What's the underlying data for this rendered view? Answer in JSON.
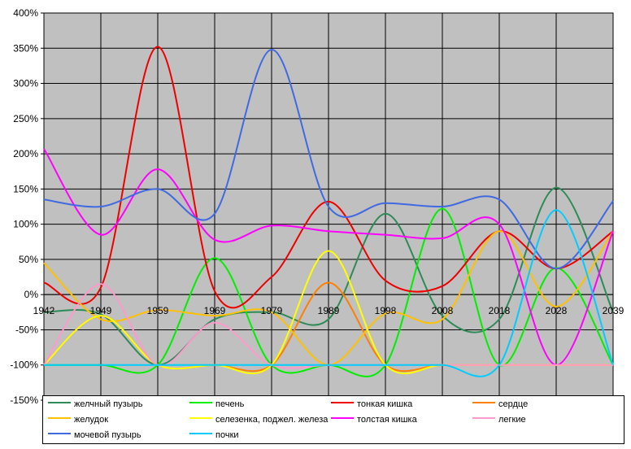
{
  "chart_data": {
    "type": "line",
    "x": [
      1942,
      1949,
      1959,
      1969,
      1979,
      1989,
      1998,
      2008,
      2018,
      2028,
      2039
    ],
    "x_tick_labels": [
      "1942",
      "1949",
      "1959",
      "1969",
      "1979",
      "1989",
      "1998",
      "2008",
      "2018",
      "2028",
      "2039"
    ],
    "ylim": [
      -150,
      400
    ],
    "y_ticks": [
      400,
      350,
      300,
      250,
      200,
      150,
      100,
      50,
      0,
      -50,
      -100,
      -150
    ],
    "y_tick_labels": [
      "400%",
      "350%",
      "300%",
      "250%",
      "200%",
      "150%",
      "100%",
      "50%",
      "0%",
      "-50%",
      "-100%",
      "-150%"
    ],
    "grid": true,
    "plot_background": "#c0c0c0",
    "legend_position": "bottom",
    "series": [
      {
        "name": "желчный пузырь",
        "color": "#2e8b57",
        "values": [
          -25,
          -28,
          -100,
          -35,
          -25,
          -35,
          115,
          -30,
          -35,
          152,
          -25
        ]
      },
      {
        "name": "печень",
        "color": "#00ee00",
        "values": [
          -100,
          -100,
          -100,
          52,
          -100,
          -100,
          -100,
          122,
          -100,
          38,
          -100
        ]
      },
      {
        "name": "тонкая кишка",
        "color": "#ee0000",
        "values": [
          17,
          10,
          352,
          5,
          25,
          132,
          20,
          12,
          90,
          37,
          90
        ]
      },
      {
        "name": "сердце",
        "color": "#ff7f00",
        "values": [
          -100,
          -30,
          -100,
          -100,
          -100,
          17,
          -100,
          -100,
          -100,
          -100,
          -100
        ]
      },
      {
        "name": "желудок",
        "color": "#ffc000",
        "values": [
          45,
          -35,
          -22,
          -30,
          -25,
          -100,
          -27,
          -35,
          90,
          -17,
          90
        ]
      },
      {
        "name": "селезенка, поджел. железа",
        "color": "#ffff00",
        "values": [
          -100,
          -30,
          -100,
          -100,
          -100,
          62,
          -100,
          -100,
          -100,
          -100,
          -100
        ]
      },
      {
        "name": "толстая кишка",
        "color": "#ff00ff",
        "values": [
          207,
          85,
          178,
          78,
          98,
          90,
          85,
          80,
          100,
          -100,
          90
        ]
      },
      {
        "name": "легкие",
        "color": "#ff99cc",
        "values": [
          -100,
          15,
          -100,
          -40,
          -100,
          -100,
          -100,
          -100,
          -100,
          -100,
          -100
        ]
      },
      {
        "name": "мочевой пузырь",
        "color": "#4169e1",
        "values": [
          135,
          125,
          150,
          115,
          348,
          125,
          130,
          125,
          135,
          37,
          133
        ]
      },
      {
        "name": "почки",
        "color": "#00ccff",
        "values": [
          -100,
          -100,
          -100,
          -100,
          -100,
          -100,
          -100,
          -100,
          -100,
          120,
          -100
        ]
      }
    ]
  }
}
